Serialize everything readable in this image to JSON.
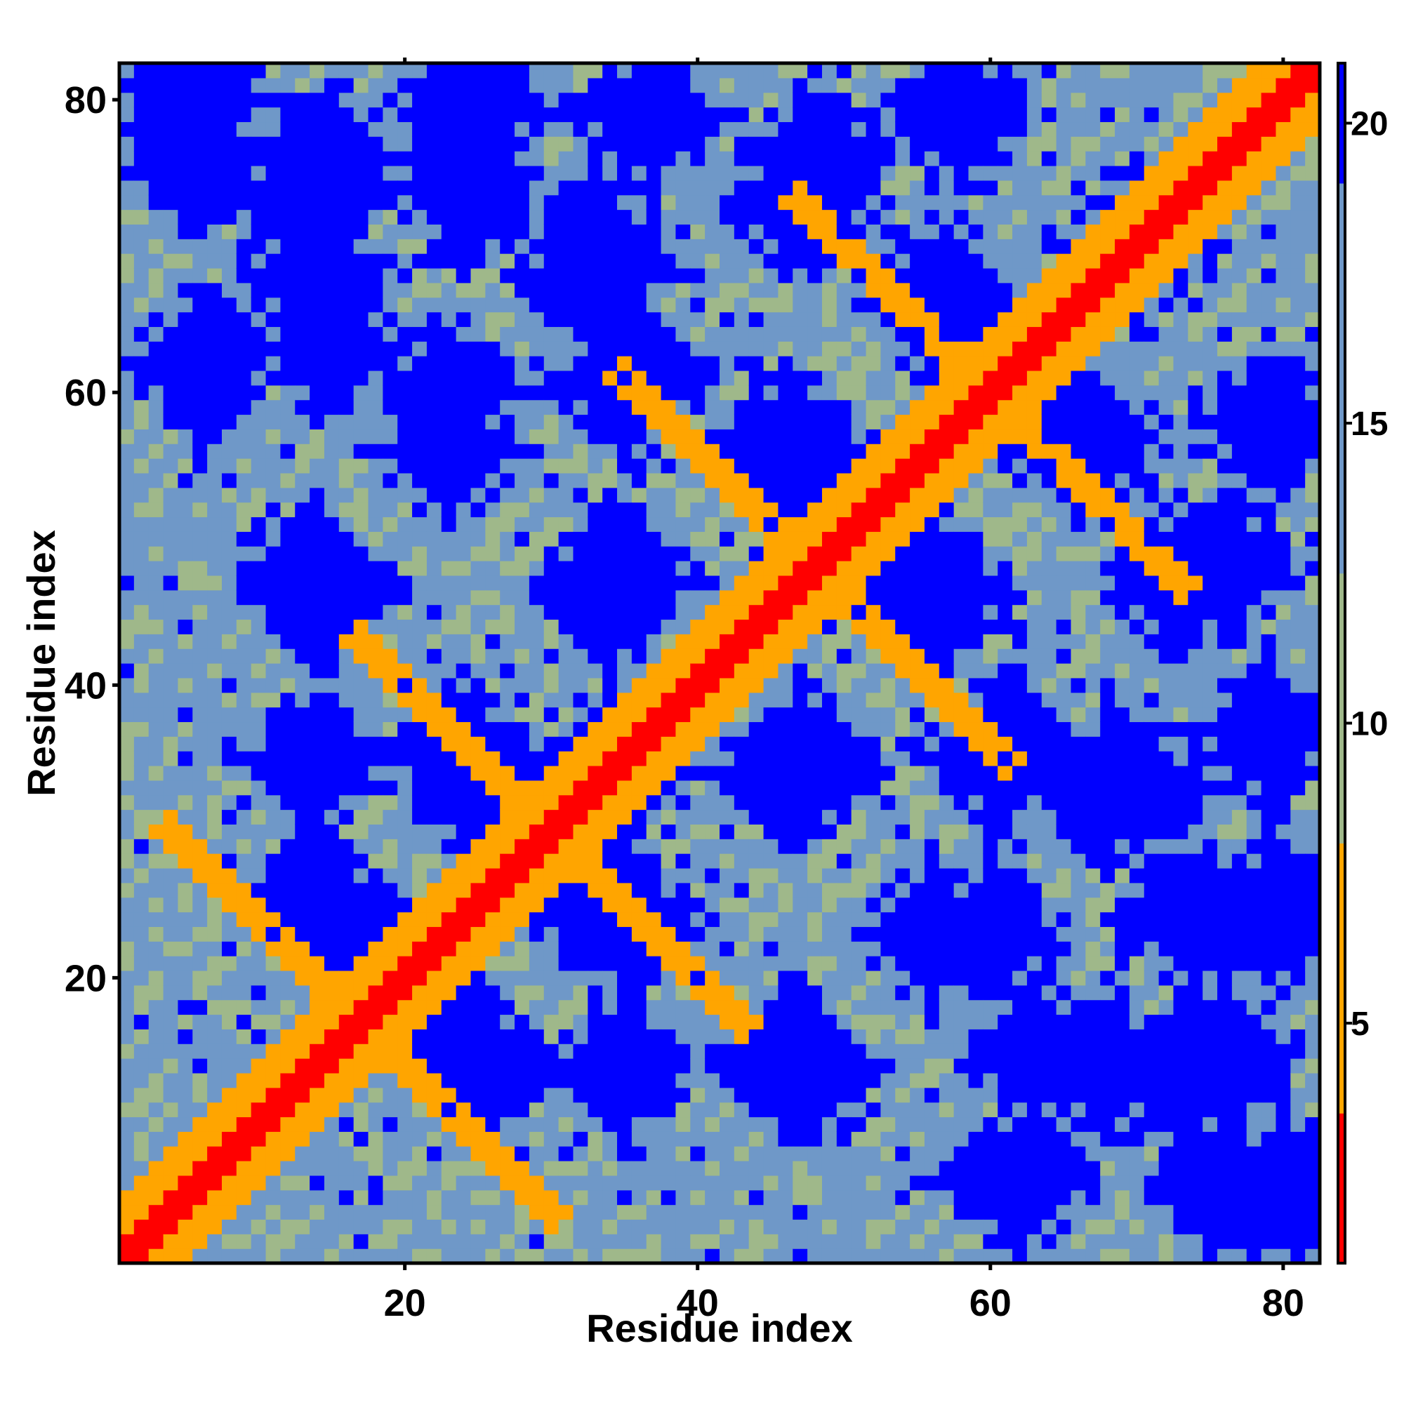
{
  "chart_data": {
    "type": "heatmap",
    "title": "",
    "xlabel": "Residue index",
    "ylabel": "Residue index",
    "n": 82,
    "xlim": [
      1,
      82
    ],
    "ylim": [
      1,
      82
    ],
    "x_ticks": [
      20,
      40,
      60,
      80
    ],
    "x_tick_labels": [
      "20",
      "40",
      "60",
      "80"
    ],
    "y_ticks": [
      20,
      40,
      60,
      80
    ],
    "y_tick_labels": [
      "20",
      "40",
      "60",
      "80"
    ],
    "colorbar": {
      "ticks": [
        5,
        10,
        15,
        20
      ],
      "tick_labels": [
        "5",
        "10",
        "15",
        "20"
      ],
      "range": [
        1,
        21
      ],
      "colors": [
        "#ff0000",
        "#ffa500",
        "#9fb88a",
        "#6f98c8",
        "#0000ff"
      ],
      "breaks": [
        3.5,
        8,
        12.5,
        19
      ]
    },
    "grid": false,
    "legend": "colorbar-right",
    "structure": {
      "description_only_for_model": false,
      "helix_period": 3.6,
      "diagonal_band": {
        "from": 0,
        "to": 1.5,
        "value": 2
      },
      "near_contacts": [
        {
          "offset": 3,
          "value": 6
        },
        {
          "offset": 4,
          "value": 6
        }
      ],
      "blue_cluster_centers": [
        [
          14,
          25
        ],
        [
          14,
          47
        ],
        [
          13,
          73
        ],
        [
          24,
          35
        ],
        [
          25,
          14
        ],
        [
          23,
          60
        ],
        [
          33,
          25
        ],
        [
          33,
          70
        ],
        [
          35,
          14
        ],
        [
          35,
          47
        ],
        [
          36,
          61
        ],
        [
          37,
          79
        ],
        [
          46,
          14
        ],
        [
          47,
          34
        ],
        [
          47,
          56
        ],
        [
          47,
          73
        ],
        [
          56,
          23
        ],
        [
          56,
          46
        ],
        [
          56,
          66
        ],
        [
          58,
          79
        ],
        [
          61,
          35
        ],
        [
          62,
          6
        ],
        [
          66,
          58
        ],
        [
          68,
          14
        ],
        [
          68,
          33
        ],
        [
          70,
          70
        ],
        [
          76,
          48
        ],
        [
          74,
          24
        ],
        [
          6,
          62
        ],
        [
          6,
          80
        ],
        [
          24,
          74
        ],
        [
          25,
          80
        ],
        [
          15,
          63
        ],
        [
          15,
          76
        ],
        [
          36,
          36
        ],
        [
          76,
          6
        ]
      ]
    }
  }
}
